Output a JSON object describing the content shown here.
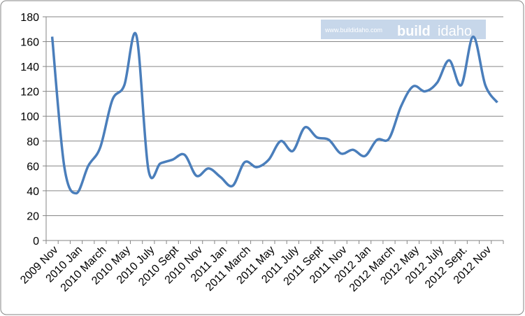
{
  "chart_data": {
    "type": "line",
    "categories": [
      "2009 Nov",
      null,
      "2010 Jan",
      null,
      "2010 March",
      null,
      "2010 May",
      null,
      "2010 July",
      null,
      "2010 Sept",
      null,
      "2010 Nov",
      null,
      "2011 Jan",
      null,
      "2011 March",
      null,
      "2011 May",
      null,
      "2011 July",
      null,
      "2011 Sept",
      null,
      "2011 Nov",
      null,
      "2012 Jan",
      null,
      "2012 March",
      null,
      "2012 May",
      null,
      "2012 July",
      null,
      "2012 Sept.",
      null,
      "2012 Nov",
      null
    ],
    "values": [
      164,
      60,
      38,
      60,
      75,
      113,
      125,
      165,
      57,
      62,
      65,
      69,
      52,
      58,
      51,
      44,
      63,
      59,
      65,
      80,
      72,
      91,
      83,
      81,
      70,
      73,
      68,
      81,
      82,
      108,
      124,
      120,
      127,
      145,
      125,
      164,
      125,
      111
    ],
    "color": "#4a7ebb",
    "ylim": [
      0,
      180
    ],
    "yticks": [
      0,
      20,
      40,
      60,
      80,
      100,
      120,
      140,
      160,
      180
    ],
    "grid": true,
    "watermark": {
      "url": "www.buildidaho.com",
      "logo_left": "build",
      "logo_right": "idaho"
    }
  }
}
